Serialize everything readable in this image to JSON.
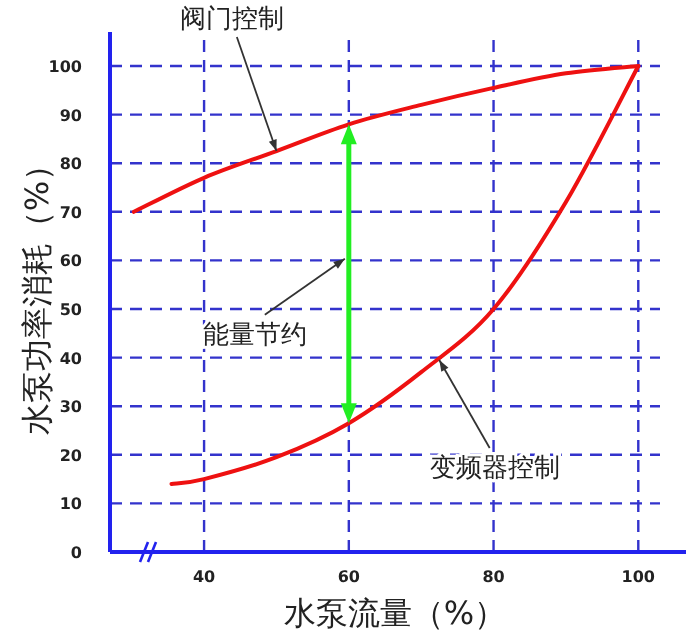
{
  "chart_data": {
    "type": "line",
    "xlabel": "水泵流量（%）",
    "ylabel": "水泵功率消耗（%）",
    "series": [
      {
        "color": "#ee1111",
        "x": [
          30.3,
          40,
          50,
          60,
          70,
          80,
          90,
          100
        ],
        "values": [
          70,
          77,
          82.5,
          88,
          92,
          95.5,
          98.5,
          100
        ]
      },
      {
        "color": "#ee1111",
        "x": [
          35.5,
          40,
          50,
          60,
          70,
          80,
          90,
          100
        ],
        "values": [
          14,
          15,
          19.5,
          26.5,
          37,
          50,
          72,
          100
        ]
      }
    ],
    "xlim": [
      27,
      103
    ],
    "ylim": [
      0,
      107
    ],
    "xticks": [
      40,
      60,
      80,
      100
    ],
    "yticks": [
      0,
      10,
      20,
      30,
      40,
      50,
      60,
      70,
      80,
      90,
      100
    ],
    "grid": true,
    "annotations": [
      {
        "text": "阀门控制",
        "x": 50,
        "y": 82.5
      },
      "能量节约",
      {
        "text": "变频器控制",
        "x": 72.5,
        "y": 39.5
      }
    ]
  }
}
